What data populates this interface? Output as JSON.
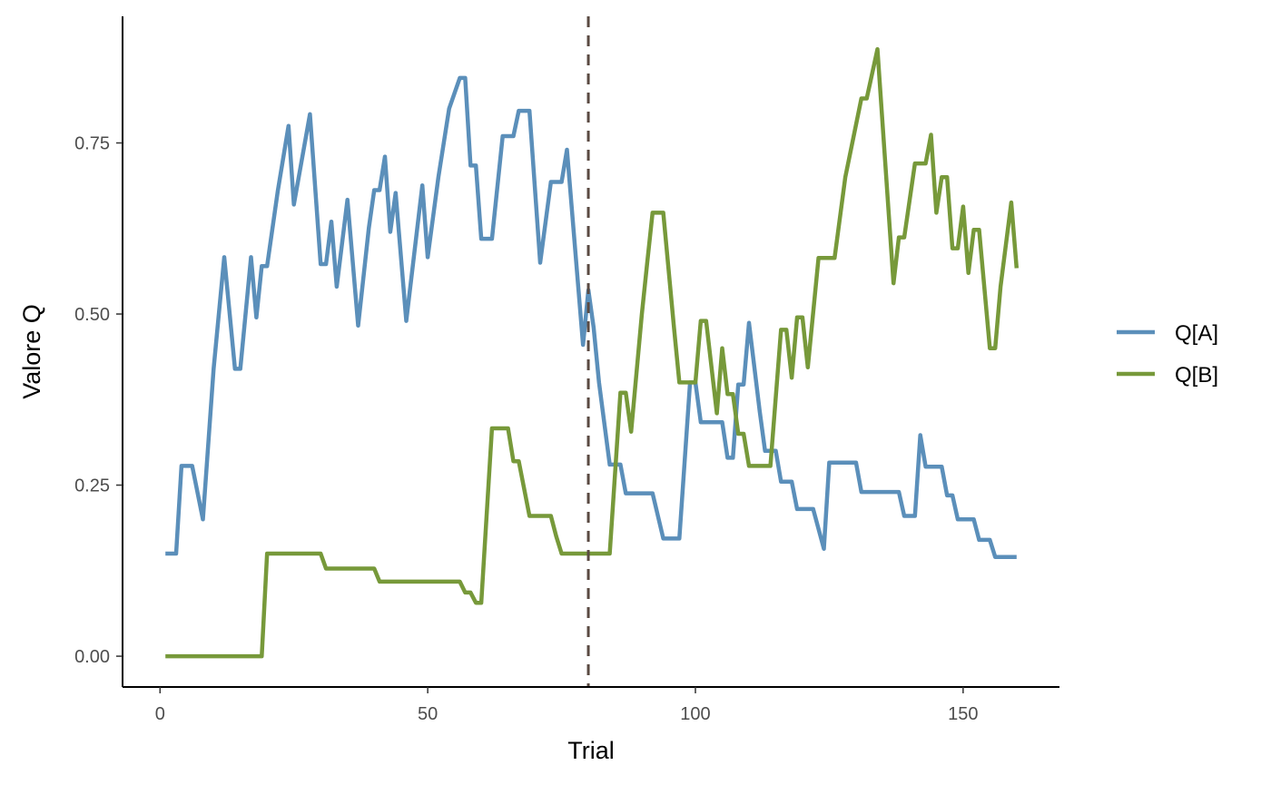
{
  "chart_data": {
    "type": "line",
    "xlabel": "Trial",
    "ylabel": "Valore Q",
    "xlim": [
      -7,
      168
    ],
    "ylim": [
      -0.045,
      0.935
    ],
    "x_ticks": [
      0,
      50,
      100,
      150
    ],
    "x_tick_labels": [
      "0",
      "50",
      "100",
      "150"
    ],
    "y_ticks": [
      0,
      0.25,
      0.5,
      0.75
    ],
    "y_tick_labels": [
      "0.00",
      "0.25",
      "0.50",
      "0.75"
    ],
    "grid": false,
    "legend": "right",
    "vline": {
      "x": 80,
      "style": "dashed",
      "color": "#5a4a42"
    },
    "series": [
      {
        "name": "Q[A]",
        "color": "#5b8fba",
        "points": [
          [
            1,
            0.15
          ],
          [
            3,
            0.15
          ],
          [
            4,
            0.278
          ],
          [
            6,
            0.278
          ],
          [
            8,
            0.2
          ],
          [
            10,
            0.42
          ],
          [
            12,
            0.583
          ],
          [
            14,
            0.42
          ],
          [
            15,
            0.42
          ],
          [
            17,
            0.583
          ],
          [
            18,
            0.495
          ],
          [
            19,
            0.57
          ],
          [
            20,
            0.57
          ],
          [
            22,
            0.68
          ],
          [
            24,
            0.775
          ],
          [
            25,
            0.66
          ],
          [
            28,
            0.792
          ],
          [
            30,
            0.573
          ],
          [
            31,
            0.573
          ],
          [
            32,
            0.635
          ],
          [
            33,
            0.54
          ],
          [
            35,
            0.667
          ],
          [
            37,
            0.483
          ],
          [
            39,
            0.626
          ],
          [
            40,
            0.681
          ],
          [
            41,
            0.681
          ],
          [
            42,
            0.73
          ],
          [
            43,
            0.62
          ],
          [
            44,
            0.677
          ],
          [
            46,
            0.49
          ],
          [
            49,
            0.688
          ],
          [
            50,
            0.583
          ],
          [
            52,
            0.7
          ],
          [
            54,
            0.8
          ],
          [
            56,
            0.845
          ],
          [
            57,
            0.845
          ],
          [
            58,
            0.717
          ],
          [
            59,
            0.717
          ],
          [
            60,
            0.61
          ],
          [
            62,
            0.61
          ],
          [
            64,
            0.76
          ],
          [
            65,
            0.76
          ],
          [
            66,
            0.76
          ],
          [
            67,
            0.797
          ],
          [
            69,
            0.797
          ],
          [
            71,
            0.575
          ],
          [
            73,
            0.693
          ],
          [
            75,
            0.693
          ],
          [
            76,
            0.74
          ],
          [
            79,
            0.455
          ],
          [
            80,
            0.535
          ],
          [
            81,
            0.48
          ],
          [
            82,
            0.4
          ],
          [
            84,
            0.28
          ],
          [
            86,
            0.28
          ],
          [
            87,
            0.238
          ],
          [
            92,
            0.238
          ],
          [
            94,
            0.172
          ],
          [
            97,
            0.172
          ],
          [
            99,
            0.4
          ],
          [
            100,
            0.4
          ],
          [
            101,
            0.342
          ],
          [
            105,
            0.342
          ],
          [
            106,
            0.29
          ],
          [
            107,
            0.29
          ],
          [
            108,
            0.397
          ],
          [
            109,
            0.397
          ],
          [
            110,
            0.487
          ],
          [
            112,
            0.358
          ],
          [
            113,
            0.3
          ],
          [
            115,
            0.3
          ],
          [
            116,
            0.255
          ],
          [
            118,
            0.255
          ],
          [
            119,
            0.215
          ],
          [
            122,
            0.215
          ],
          [
            124,
            0.157
          ],
          [
            125,
            0.283
          ],
          [
            130,
            0.283
          ],
          [
            131,
            0.24
          ],
          [
            138,
            0.24
          ],
          [
            139,
            0.205
          ],
          [
            141,
            0.205
          ],
          [
            142,
            0.323
          ],
          [
            143,
            0.277
          ],
          [
            146,
            0.277
          ],
          [
            147,
            0.235
          ],
          [
            148,
            0.235
          ],
          [
            149,
            0.2
          ],
          [
            152,
            0.2
          ],
          [
            153,
            0.17
          ],
          [
            155,
            0.17
          ],
          [
            156,
            0.145
          ],
          [
            160,
            0.145
          ]
        ]
      },
      {
        "name": "Q[B]",
        "color": "#77993a",
        "points": [
          [
            1,
            0
          ],
          [
            19,
            0
          ],
          [
            20,
            0.15
          ],
          [
            30,
            0.15
          ],
          [
            31,
            0.128
          ],
          [
            40,
            0.128
          ],
          [
            41,
            0.109
          ],
          [
            56,
            0.109
          ],
          [
            57,
            0.093
          ],
          [
            58,
            0.093
          ],
          [
            59,
            0.078
          ],
          [
            60,
            0.078
          ],
          [
            62,
            0.333
          ],
          [
            65,
            0.333
          ],
          [
            66,
            0.285
          ],
          [
            67,
            0.285
          ],
          [
            68,
            0.245
          ],
          [
            69,
            0.205
          ],
          [
            73,
            0.205
          ],
          [
            74,
            0.175
          ],
          [
            75,
            0.15
          ],
          [
            84,
            0.15
          ],
          [
            86,
            0.385
          ],
          [
            87,
            0.385
          ],
          [
            88,
            0.328
          ],
          [
            90,
            0.5
          ],
          [
            91,
            0.575
          ],
          [
            92,
            0.648
          ],
          [
            94,
            0.648
          ],
          [
            96,
            0.48
          ],
          [
            97,
            0.4
          ],
          [
            100,
            0.4
          ],
          [
            101,
            0.49
          ],
          [
            102,
            0.49
          ],
          [
            104,
            0.355
          ],
          [
            105,
            0.45
          ],
          [
            106,
            0.383
          ],
          [
            107,
            0.383
          ],
          [
            108,
            0.325
          ],
          [
            109,
            0.325
          ],
          [
            110,
            0.278
          ],
          [
            114,
            0.278
          ],
          [
            116,
            0.477
          ],
          [
            117,
            0.477
          ],
          [
            118,
            0.407
          ],
          [
            119,
            0.495
          ],
          [
            120,
            0.495
          ],
          [
            121,
            0.422
          ],
          [
            123,
            0.582
          ],
          [
            126,
            0.582
          ],
          [
            128,
            0.7
          ],
          [
            131,
            0.815
          ],
          [
            132,
            0.815
          ],
          [
            134,
            0.887
          ],
          [
            137,
            0.545
          ],
          [
            138,
            0.612
          ],
          [
            139,
            0.612
          ],
          [
            141,
            0.72
          ],
          [
            143,
            0.72
          ],
          [
            144,
            0.762
          ],
          [
            145,
            0.648
          ],
          [
            146,
            0.7
          ],
          [
            147,
            0.7
          ],
          [
            148,
            0.596
          ],
          [
            149,
            0.596
          ],
          [
            150,
            0.657
          ],
          [
            151,
            0.56
          ],
          [
            152,
            0.623
          ],
          [
            153,
            0.623
          ],
          [
            155,
            0.45
          ],
          [
            156,
            0.45
          ],
          [
            157,
            0.54
          ],
          [
            159,
            0.663
          ],
          [
            160,
            0.567
          ]
        ]
      }
    ]
  }
}
